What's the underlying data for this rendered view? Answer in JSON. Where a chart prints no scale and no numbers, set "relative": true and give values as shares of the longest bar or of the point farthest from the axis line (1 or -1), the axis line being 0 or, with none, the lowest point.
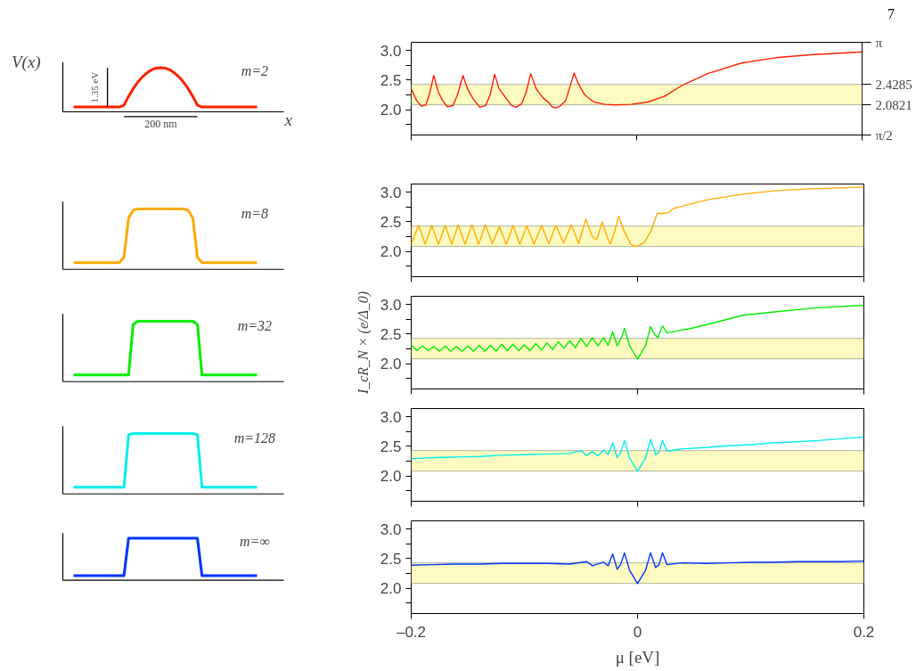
{
  "chart_data": [
    {
      "type": "line",
      "relative": true,
      "ylabel": "V(x)",
      "xlabel": "x",
      "annotations": [
        "m=2",
        "1.35 eV",
        "200 nm"
      ],
      "categories": [
        null,
        null,
        null,
        null,
        null,
        null,
        null,
        null,
        null,
        null,
        null,
        null,
        null,
        null,
        null,
        null,
        null,
        null,
        null,
        null,
        null,
        null,
        null,
        null,
        null,
        null,
        null,
        null,
        null,
        null,
        null,
        null,
        null,
        null,
        null,
        null,
        null,
        null,
        null,
        null,
        null
      ],
      "series": [
        {
          "color": "#ff2200",
          "values": [
            0.11,
            0.11,
            0.11,
            0.11,
            0.11,
            0.11,
            0.11,
            0.11,
            0.11,
            0.11,
            0.11,
            0.15,
            0.35,
            0.52,
            0.67,
            0.79,
            0.88,
            0.95,
            0.99,
            1,
            0.99,
            0.95,
            0.88,
            0.79,
            0.67,
            0.52,
            0.35,
            0.15,
            0.11,
            0.11,
            0.11,
            0.11,
            0.11,
            0.11,
            0.11,
            0.11,
            0.11,
            0.11,
            0.11,
            0.11,
            0.11
          ]
        }
      ]
    },
    {
      "type": "line",
      "xlim": [
        -0.2,
        0.2
      ],
      "ylim": [
        1.5708,
        3.1416
      ],
      "y2lim": [
        1.5708,
        3.1416
      ],
      "tick_labels": "y",
      "annotations": [
        "7"
      ],
      "xticks": [
        -0.2,
        0,
        0.2
      ],
      "yticks": [
        {
          "value": 1.75,
          "label": null
        },
        {
          "value": 2.0,
          "label": "2.0"
        },
        {
          "value": 2.25,
          "label": null
        },
        {
          "value": 2.5,
          "label": "2.5"
        },
        {
          "value": 2.75,
          "label": null
        },
        {
          "value": 3.0,
          "label": "3.0"
        }
      ],
      "y2ticks": [
        {
          "value": 1.5708,
          "label": "π/2"
        },
        2.0821,
        2.4285,
        {
          "value": 3.1416,
          "label": "π"
        }
      ],
      "bands": [
        {
          "axis": "y",
          "from": 2.0821,
          "to": 2.4285,
          "color": "#fdfbc0"
        }
      ],
      "series": [
        {
          "color": "#ff2200",
          "x": [
            -0.2,
            -0.195,
            -0.191,
            -0.187,
            -0.184,
            -0.18,
            -0.176,
            -0.172,
            -0.168,
            -0.163,
            -0.159,
            -0.154,
            -0.15,
            -0.145,
            -0.139,
            -0.134,
            -0.13,
            -0.126,
            -0.122,
            -0.116,
            -0.111,
            -0.107,
            -0.102,
            -0.098,
            -0.094,
            -0.089,
            -0.083,
            -0.078,
            -0.075,
            -0.072,
            -0.068,
            -0.063,
            -0.059,
            -0.0555,
            -0.052,
            -0.046,
            -0.038,
            -0.028,
            -0.019,
            -0.005,
            0.01,
            0.025,
            0.041,
            0.063,
            0.093,
            0.123,
            0.154,
            0.2
          ],
          "values": [
            2.35,
            2.15,
            2.06,
            2.08,
            2.25,
            2.58,
            2.3,
            2.15,
            2.05,
            2.07,
            2.25,
            2.58,
            2.35,
            2.18,
            2.04,
            2.07,
            2.25,
            2.6,
            2.35,
            2.2,
            2.07,
            2.04,
            2.1,
            2.3,
            2.61,
            2.35,
            2.2,
            2.12,
            2.05,
            2.03,
            2.06,
            2.15,
            2.4,
            2.62,
            2.45,
            2.25,
            2.13,
            2.09,
            2.08,
            2.09,
            2.13,
            2.23,
            2.42,
            2.61,
            2.79,
            2.88,
            2.93,
            2.98
          ]
        }
      ]
    },
    {
      "type": "line",
      "relative": true,
      "annotations": [
        "m=8"
      ],
      "categories": [
        null,
        null,
        null,
        null,
        null,
        null,
        null,
        null,
        null,
        null,
        null,
        null,
        null,
        null,
        null,
        null,
        null,
        null,
        null,
        null,
        null,
        null,
        null,
        null,
        null,
        null,
        null,
        null,
        null,
        null,
        null,
        null,
        null,
        null,
        null,
        null,
        null,
        null,
        null,
        null,
        null
      ],
      "series": [
        {
          "color": "#ffaa00",
          "values": [
            0.11,
            0.11,
            0.11,
            0.11,
            0.11,
            0.11,
            0.11,
            0.11,
            0.11,
            0.11,
            0.11,
            0.2,
            0.85,
            0.98,
            1,
            1,
            1,
            1,
            1,
            1,
            1,
            1,
            1,
            1,
            1,
            0.98,
            0.85,
            0.2,
            0.11,
            0.11,
            0.11,
            0.11,
            0.11,
            0.11,
            0.11,
            0.11,
            0.11,
            0.11,
            0.11,
            0.11,
            0.11
          ]
        }
      ]
    },
    {
      "type": "line",
      "xlim": [
        -0.2,
        0.2
      ],
      "ylim": [
        1.5708,
        3.1416
      ],
      "tick_labels": "y",
      "xticks": [
        -0.2,
        0,
        0.2
      ],
      "yticks": [
        {
          "value": 1.75,
          "label": null
        },
        {
          "value": 2.0,
          "label": "2.0"
        },
        {
          "value": 2.25,
          "label": null
        },
        {
          "value": 2.5,
          "label": "2.5"
        },
        {
          "value": 2.75,
          "label": null
        },
        {
          "value": 3.0,
          "label": "3.0"
        }
      ],
      "bands": [
        {
          "axis": "y",
          "from": 2.0821,
          "to": 2.4285,
          "color": "#fdfbc0"
        }
      ],
      "series": [
        {
          "color": "#ffaa00",
          "x": [
            -0.2,
            -0.1933,
            -0.1876,
            -0.1818,
            -0.1759,
            -0.17,
            -0.1642,
            -0.1585,
            -0.1524,
            -0.1464,
            -0.1405,
            -0.1345,
            -0.1283,
            -0.1221,
            -0.116,
            -0.11,
            -0.104,
            -0.0979,
            -0.0914,
            -0.0848,
            -0.0785,
            -0.0721,
            -0.0653,
            -0.0585,
            -0.052,
            -0.0458,
            -0.04,
            -0.036,
            -0.0312,
            -0.027,
            -0.024,
            -0.02,
            -0.0167,
            -0.012,
            -0.006,
            -0.0009,
            0.006,
            0.012,
            0.0173,
            0.0264,
            0.0324,
            0.0627,
            0.093,
            0.1233,
            0.1536,
            0.2
          ],
          "values": [
            2.13,
            2.44,
            2.12,
            2.44,
            2.12,
            2.44,
            2.12,
            2.45,
            2.12,
            2.45,
            2.12,
            2.45,
            2.13,
            2.42,
            2.12,
            2.44,
            2.12,
            2.43,
            2.12,
            2.44,
            2.13,
            2.44,
            2.14,
            2.45,
            2.13,
            2.55,
            2.25,
            2.2,
            2.5,
            2.25,
            2.12,
            2.35,
            2.6,
            2.35,
            2.12,
            2.08,
            2.15,
            2.35,
            2.64,
            2.65,
            2.73,
            2.88,
            2.97,
            3.03,
            3.06,
            3.09
          ]
        }
      ]
    },
    {
      "type": "line",
      "relative": true,
      "annotations": [
        "m=32"
      ],
      "categories": [
        null,
        null,
        null,
        null,
        null,
        null,
        null,
        null,
        null,
        null,
        null,
        null,
        null,
        null,
        null,
        null,
        null,
        null,
        null,
        null,
        null,
        null,
        null,
        null,
        null,
        null,
        null,
        null,
        null,
        null,
        null,
        null,
        null,
        null,
        null,
        null,
        null,
        null,
        null,
        null,
        null
      ],
      "series": [
        {
          "color": "#00ee00",
          "values": [
            0.11,
            0.11,
            0.11,
            0.11,
            0.11,
            0.11,
            0.11,
            0.11,
            0.11,
            0.11,
            0.11,
            0.11,
            0.11,
            0.95,
            1,
            1,
            1,
            1,
            1,
            1,
            1,
            1,
            1,
            1,
            1,
            1,
            1,
            0.95,
            0.11,
            0.11,
            0.11,
            0.11,
            0.11,
            0.11,
            0.11,
            0.11,
            0.11,
            0.11,
            0.11,
            0.11,
            0.11
          ]
        }
      ]
    },
    {
      "type": "line",
      "xlim": [
        -0.2,
        0.2
      ],
      "ylim": [
        1.5708,
        3.1416
      ],
      "tick_labels": "y",
      "ylabel": "I_cR_N × (e/Δ_0)",
      "xticks": [
        -0.2,
        0,
        0.2
      ],
      "yticks": [
        {
          "value": 1.75,
          "label": null
        },
        {
          "value": 2.0,
          "label": "2.0"
        },
        {
          "value": 2.25,
          "label": null
        },
        {
          "value": 2.5,
          "label": "2.5"
        },
        {
          "value": 2.75,
          "label": null
        },
        {
          "value": 3.0,
          "label": "3.0"
        }
      ],
      "bands": [
        {
          "axis": "y",
          "from": 2.0821,
          "to": 2.4285,
          "color": "#fdfbc0"
        }
      ],
      "series": [
        {
          "color": "#00ee00",
          "x": [
            -0.2,
            -0.195,
            -0.19,
            -0.185,
            -0.18,
            -0.175,
            -0.17,
            -0.165,
            -0.16,
            -0.155,
            -0.15,
            -0.145,
            -0.14,
            -0.135,
            -0.13,
            -0.125,
            -0.12,
            -0.115,
            -0.11,
            -0.105,
            -0.1,
            -0.095,
            -0.09,
            -0.085,
            -0.08,
            -0.075,
            -0.07,
            -0.065,
            -0.06,
            -0.055,
            -0.05,
            -0.045,
            -0.04,
            -0.035,
            -0.03,
            -0.026,
            -0.022,
            -0.018,
            -0.014,
            -0.0115,
            -0.007,
            0,
            0.007,
            0.0115,
            0.015,
            0.018,
            0.022,
            0.026,
            0.034,
            0.05,
            0.063,
            0.093,
            0.123,
            0.154,
            0.2
          ],
          "values": [
            2.32,
            2.22,
            2.3,
            2.22,
            2.29,
            2.21,
            2.3,
            2.21,
            2.29,
            2.21,
            2.3,
            2.21,
            2.31,
            2.21,
            2.31,
            2.21,
            2.33,
            2.22,
            2.33,
            2.22,
            2.32,
            2.22,
            2.34,
            2.23,
            2.35,
            2.24,
            2.37,
            2.26,
            2.39,
            2.27,
            2.43,
            2.29,
            2.44,
            2.3,
            2.44,
            2.31,
            2.54,
            2.3,
            2.45,
            2.6,
            2.3,
            2.08,
            2.3,
            2.63,
            2.5,
            2.44,
            2.64,
            2.52,
            2.55,
            2.61,
            2.67,
            2.82,
            2.88,
            2.94,
            2.99
          ]
        }
      ]
    },
    {
      "type": "line",
      "relative": true,
      "annotations": [
        "m=128"
      ],
      "categories": [
        null,
        null,
        null,
        null,
        null,
        null,
        null,
        null,
        null,
        null,
        null,
        null,
        null,
        null,
        null,
        null,
        null,
        null,
        null,
        null,
        null,
        null,
        null,
        null,
        null,
        null,
        null,
        null,
        null,
        null,
        null,
        null,
        null,
        null,
        null,
        null,
        null,
        null,
        null,
        null,
        null
      ],
      "series": [
        {
          "color": "#00eeee",
          "values": [
            0.11,
            0.11,
            0.11,
            0.11,
            0.11,
            0.11,
            0.11,
            0.11,
            0.11,
            0.11,
            0.11,
            0.11,
            0.98,
            1,
            1,
            1,
            1,
            1,
            1,
            1,
            1,
            1,
            1,
            1,
            1,
            1,
            1,
            0.98,
            0.11,
            0.11,
            0.11,
            0.11,
            0.11,
            0.11,
            0.11,
            0.11,
            0.11,
            0.11,
            0.11,
            0.11,
            0.11
          ]
        }
      ]
    },
    {
      "type": "line",
      "xlim": [
        -0.2,
        0.2
      ],
      "ylim": [
        1.5708,
        3.1416
      ],
      "tick_labels": "y",
      "xticks": [
        -0.2,
        0,
        0.2
      ],
      "yticks": [
        {
          "value": 1.75,
          "label": null
        },
        {
          "value": 2.0,
          "label": "2.0"
        },
        {
          "value": 2.25,
          "label": null
        },
        {
          "value": 2.5,
          "label": "2.5"
        },
        {
          "value": 2.75,
          "label": null
        },
        {
          "value": 3.0,
          "label": "3.0"
        }
      ],
      "bands": [
        {
          "axis": "y",
          "from": 2.0821,
          "to": 2.4285,
          "color": "#fdfbc0"
        }
      ],
      "series": [
        {
          "color": "#00eeee",
          "x": [
            -0.2,
            -0.18,
            -0.16,
            -0.14,
            -0.12,
            -0.1,
            -0.08,
            -0.06,
            -0.05,
            -0.045,
            -0.04,
            -0.035,
            -0.03,
            -0.026,
            -0.022,
            -0.018,
            -0.015,
            -0.0115,
            -0.007,
            0,
            0.007,
            0.0115,
            0.016,
            0.019,
            0.022,
            0.026,
            0.04,
            0.06,
            0.08,
            0.1,
            0.12,
            0.14,
            0.16,
            0.18,
            0.2
          ],
          "values": [
            2.29,
            2.31,
            2.32,
            2.33,
            2.35,
            2.36,
            2.37,
            2.38,
            2.43,
            2.35,
            2.41,
            2.34,
            2.44,
            2.36,
            2.56,
            2.31,
            2.4,
            2.6,
            2.3,
            2.08,
            2.3,
            2.62,
            2.36,
            2.4,
            2.6,
            2.42,
            2.46,
            2.48,
            2.51,
            2.53,
            2.56,
            2.58,
            2.6,
            2.63,
            2.66
          ]
        }
      ]
    },
    {
      "type": "line",
      "relative": true,
      "annotations": [
        "m=∞"
      ],
      "categories": [
        null,
        null,
        null,
        null,
        null,
        null,
        null,
        null,
        null,
        null,
        null,
        null,
        null,
        null,
        null,
        null,
        null,
        null,
        null,
        null,
        null,
        null,
        null,
        null,
        null,
        null,
        null,
        null,
        null,
        null,
        null,
        null,
        null,
        null,
        null,
        null,
        null,
        null,
        null,
        null,
        null
      ],
      "series": [
        {
          "color": "#0033ff",
          "values": [
            0.11,
            0.11,
            0.11,
            0.11,
            0.11,
            0.11,
            0.11,
            0.11,
            0.11,
            0.11,
            0.11,
            0.11,
            1,
            1,
            1,
            1,
            1,
            1,
            1,
            1,
            1,
            1,
            1,
            1,
            1,
            1,
            1,
            1,
            0.11,
            0.11,
            0.11,
            0.11,
            0.11,
            0.11,
            0.11,
            0.11,
            0.11,
            0.11,
            0.11,
            0.11,
            0.11
          ]
        }
      ]
    },
    {
      "type": "line",
      "xlim": [
        -0.2,
        0.2
      ],
      "ylim": [
        1.5708,
        3.1416
      ],
      "xlabel": "μ [eV]",
      "xticks": [
        {
          "value": -0.2,
          "label": "–0.2"
        },
        0,
        0.2
      ],
      "yticks": [
        {
          "value": 1.75,
          "label": null
        },
        {
          "value": 2.0,
          "label": "2.0"
        },
        {
          "value": 2.25,
          "label": null
        },
        {
          "value": 2.5,
          "label": "2.5"
        },
        {
          "value": 2.75,
          "label": null
        },
        {
          "value": 3.0,
          "label": "3.0"
        }
      ],
      "bands": [
        {
          "axis": "y",
          "from": 2.0821,
          "to": 2.4285,
          "color": "#fdfbc0"
        }
      ],
      "series": [
        {
          "color": "#0033ff",
          "x": [
            -0.2,
            -0.18,
            -0.16,
            -0.14,
            -0.12,
            -0.1,
            -0.08,
            -0.06,
            -0.045,
            -0.04,
            -0.03,
            -0.026,
            -0.022,
            -0.018,
            -0.015,
            -0.0115,
            -0.007,
            0,
            0.007,
            0.0115,
            0.016,
            0.019,
            0.022,
            0.026,
            0.04,
            0.06,
            0.08,
            0.1,
            0.12,
            0.14,
            0.16,
            0.18,
            0.2
          ],
          "values": [
            2.39,
            2.4,
            2.41,
            2.41,
            2.42,
            2.42,
            2.42,
            2.41,
            2.45,
            2.38,
            2.44,
            2.38,
            2.58,
            2.32,
            2.4,
            2.6,
            2.3,
            2.08,
            2.3,
            2.6,
            2.35,
            2.4,
            2.6,
            2.4,
            2.43,
            2.42,
            2.43,
            2.44,
            2.44,
            2.45,
            2.45,
            2.45,
            2.46
          ]
        }
      ]
    }
  ]
}
